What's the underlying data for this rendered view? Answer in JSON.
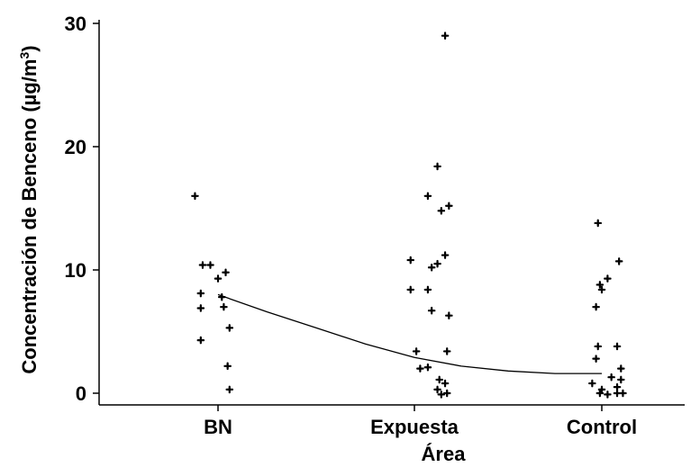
{
  "chart_data": {
    "type": "scatter",
    "title": "",
    "xlabel": "Área",
    "ylabel": "Concentración de Benceno (µg/m",
    "ylabel_superscript": "3",
    "ylabel_close": ")",
    "categories": [
      "BN",
      "Expuesta",
      "Control"
    ],
    "y_ticks": [
      0,
      10,
      20,
      30
    ],
    "ylim": [
      -1,
      30.5
    ],
    "grid": false,
    "legend": "none",
    "series": [
      {
        "category": "BN",
        "points": [
          {
            "j": -0.12,
            "y": 16.0
          },
          {
            "j": -0.08,
            "y": 10.4
          },
          {
            "j": -0.04,
            "y": 10.4
          },
          {
            "j": 0.04,
            "y": 9.8
          },
          {
            "j": 0.0,
            "y": 9.3
          },
          {
            "j": -0.09,
            "y": 8.1
          },
          {
            "j": 0.02,
            "y": 7.8
          },
          {
            "j": -0.09,
            "y": 6.9
          },
          {
            "j": 0.03,
            "y": 7.0
          },
          {
            "j": 0.06,
            "y": 5.3
          },
          {
            "j": -0.09,
            "y": 4.3
          },
          {
            "j": 0.05,
            "y": 2.2
          },
          {
            "j": 0.06,
            "y": 0.3
          }
        ]
      },
      {
        "category": "Expuesta",
        "points": [
          {
            "j": 0.16,
            "y": 29.0
          },
          {
            "j": 0.12,
            "y": 18.4
          },
          {
            "j": 0.18,
            "y": 15.2
          },
          {
            "j": 0.07,
            "y": 16.0
          },
          {
            "j": 0.14,
            "y": 14.8
          },
          {
            "j": -0.02,
            "y": 10.8
          },
          {
            "j": 0.16,
            "y": 11.2
          },
          {
            "j": 0.12,
            "y": 10.5
          },
          {
            "j": 0.09,
            "y": 10.2
          },
          {
            "j": -0.02,
            "y": 8.4
          },
          {
            "j": 0.07,
            "y": 8.4
          },
          {
            "j": 0.09,
            "y": 6.7
          },
          {
            "j": 0.18,
            "y": 6.3
          },
          {
            "j": 0.01,
            "y": 3.4
          },
          {
            "j": 0.17,
            "y": 3.4
          },
          {
            "j": 0.03,
            "y": 2.0
          },
          {
            "j": 0.07,
            "y": 2.1
          },
          {
            "j": 0.13,
            "y": 1.1
          },
          {
            "j": 0.16,
            "y": 0.8
          },
          {
            "j": 0.12,
            "y": 0.3
          },
          {
            "j": 0.17,
            "y": 0.0
          },
          {
            "j": 0.14,
            "y": -0.1
          }
        ]
      },
      {
        "category": "Control",
        "points": [
          {
            "j": -0.02,
            "y": 13.8
          },
          {
            "j": 0.09,
            "y": 10.7
          },
          {
            "j": 0.03,
            "y": 9.3
          },
          {
            "j": -0.01,
            "y": 8.8
          },
          {
            "j": 0.0,
            "y": 8.4
          },
          {
            "j": -0.03,
            "y": 7.0
          },
          {
            "j": -0.02,
            "y": 3.8
          },
          {
            "j": 0.08,
            "y": 3.8
          },
          {
            "j": -0.03,
            "y": 2.8
          },
          {
            "j": 0.1,
            "y": 2.0
          },
          {
            "j": 0.05,
            "y": 1.3
          },
          {
            "j": 0.1,
            "y": 1.1
          },
          {
            "j": -0.05,
            "y": 0.8
          },
          {
            "j": 0.0,
            "y": 0.3
          },
          {
            "j": 0.08,
            "y": 0.5
          },
          {
            "j": -0.01,
            "y": 0.0
          },
          {
            "j": 0.03,
            "y": -0.1
          },
          {
            "j": 0.08,
            "y": 0.0
          },
          {
            "j": 0.11,
            "y": 0.0
          }
        ]
      }
    ],
    "trend_line": [
      {
        "x": 0.0,
        "y": 8.0
      },
      {
        "x": 0.25,
        "y": 6.6
      },
      {
        "x": 0.5,
        "y": 5.3
      },
      {
        "x": 0.75,
        "y": 4.0
      },
      {
        "x": 1.0,
        "y": 2.9
      },
      {
        "x": 1.25,
        "y": 2.2
      },
      {
        "x": 1.5,
        "y": 1.8
      },
      {
        "x": 1.75,
        "y": 1.6
      },
      {
        "x": 2.0,
        "y": 1.6
      }
    ]
  }
}
